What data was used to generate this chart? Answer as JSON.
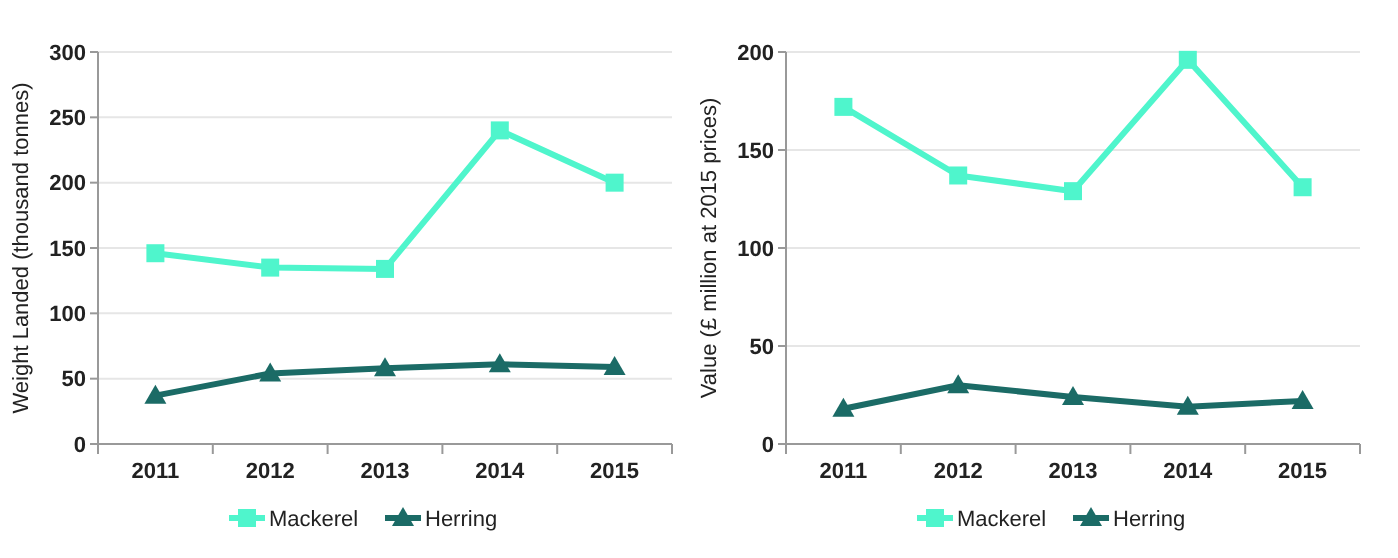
{
  "chart_data": [
    {
      "type": "line",
      "ylabel": "Weight Landed (thousand tonnes)",
      "categories": [
        "2011",
        "2012",
        "2013",
        "2014",
        "2015"
      ],
      "series": [
        {
          "name": "Mackerel",
          "color": "#4ff5cc",
          "marker": "square",
          "values": [
            146,
            135,
            134,
            240,
            200
          ]
        },
        {
          "name": "Herring",
          "color": "#1b6b66",
          "marker": "triangle",
          "values": [
            37,
            54,
            58,
            61,
            59
          ]
        }
      ],
      "ylim": [
        0,
        300
      ],
      "yticks": [
        0,
        50,
        100,
        150,
        200,
        250,
        300
      ],
      "grid": "y",
      "legend": "bottom"
    },
    {
      "type": "line",
      "ylabel": "Value (£ million at 2015 prices)",
      "categories": [
        "2011",
        "2012",
        "2013",
        "2014",
        "2015"
      ],
      "series": [
        {
          "name": "Mackerel",
          "color": "#4ff5cc",
          "marker": "square",
          "values": [
            172,
            137,
            129,
            196,
            131
          ]
        },
        {
          "name": "Herring",
          "color": "#1b6b66",
          "marker": "triangle",
          "values": [
            18,
            30,
            24,
            19,
            22
          ]
        }
      ],
      "ylim": [
        0,
        200
      ],
      "yticks": [
        0,
        50,
        100,
        150,
        200
      ],
      "grid": "y",
      "legend": "bottom"
    }
  ]
}
